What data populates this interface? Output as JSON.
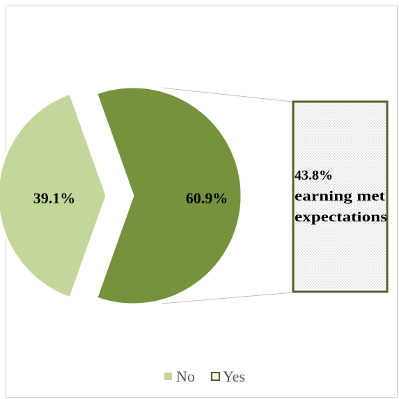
{
  "chart_data": {
    "type": "pie",
    "slices": [
      {
        "label": "No",
        "value": 39.1,
        "display": "39.1%",
        "color": "#c4d79b"
      },
      {
        "label": "Yes",
        "value": 60.9,
        "display": "60.9%",
        "color": "#76923c"
      }
    ],
    "callout": {
      "lines": [
        "43.8%",
        "earning met",
        "expectations"
      ],
      "of_slice": "Yes"
    },
    "legend": {
      "placement": "bottom",
      "items": [
        {
          "label": "No",
          "swatch": "solid",
          "color": "#c4d79b"
        },
        {
          "label": "Yes",
          "swatch": "dotted-outline",
          "color": "#4f6228"
        }
      ]
    },
    "colors": {
      "no": "#c4d79b",
      "yes": "#76923c",
      "box_border": "#4f6228",
      "box_dots": "#9a9a9a"
    }
  }
}
